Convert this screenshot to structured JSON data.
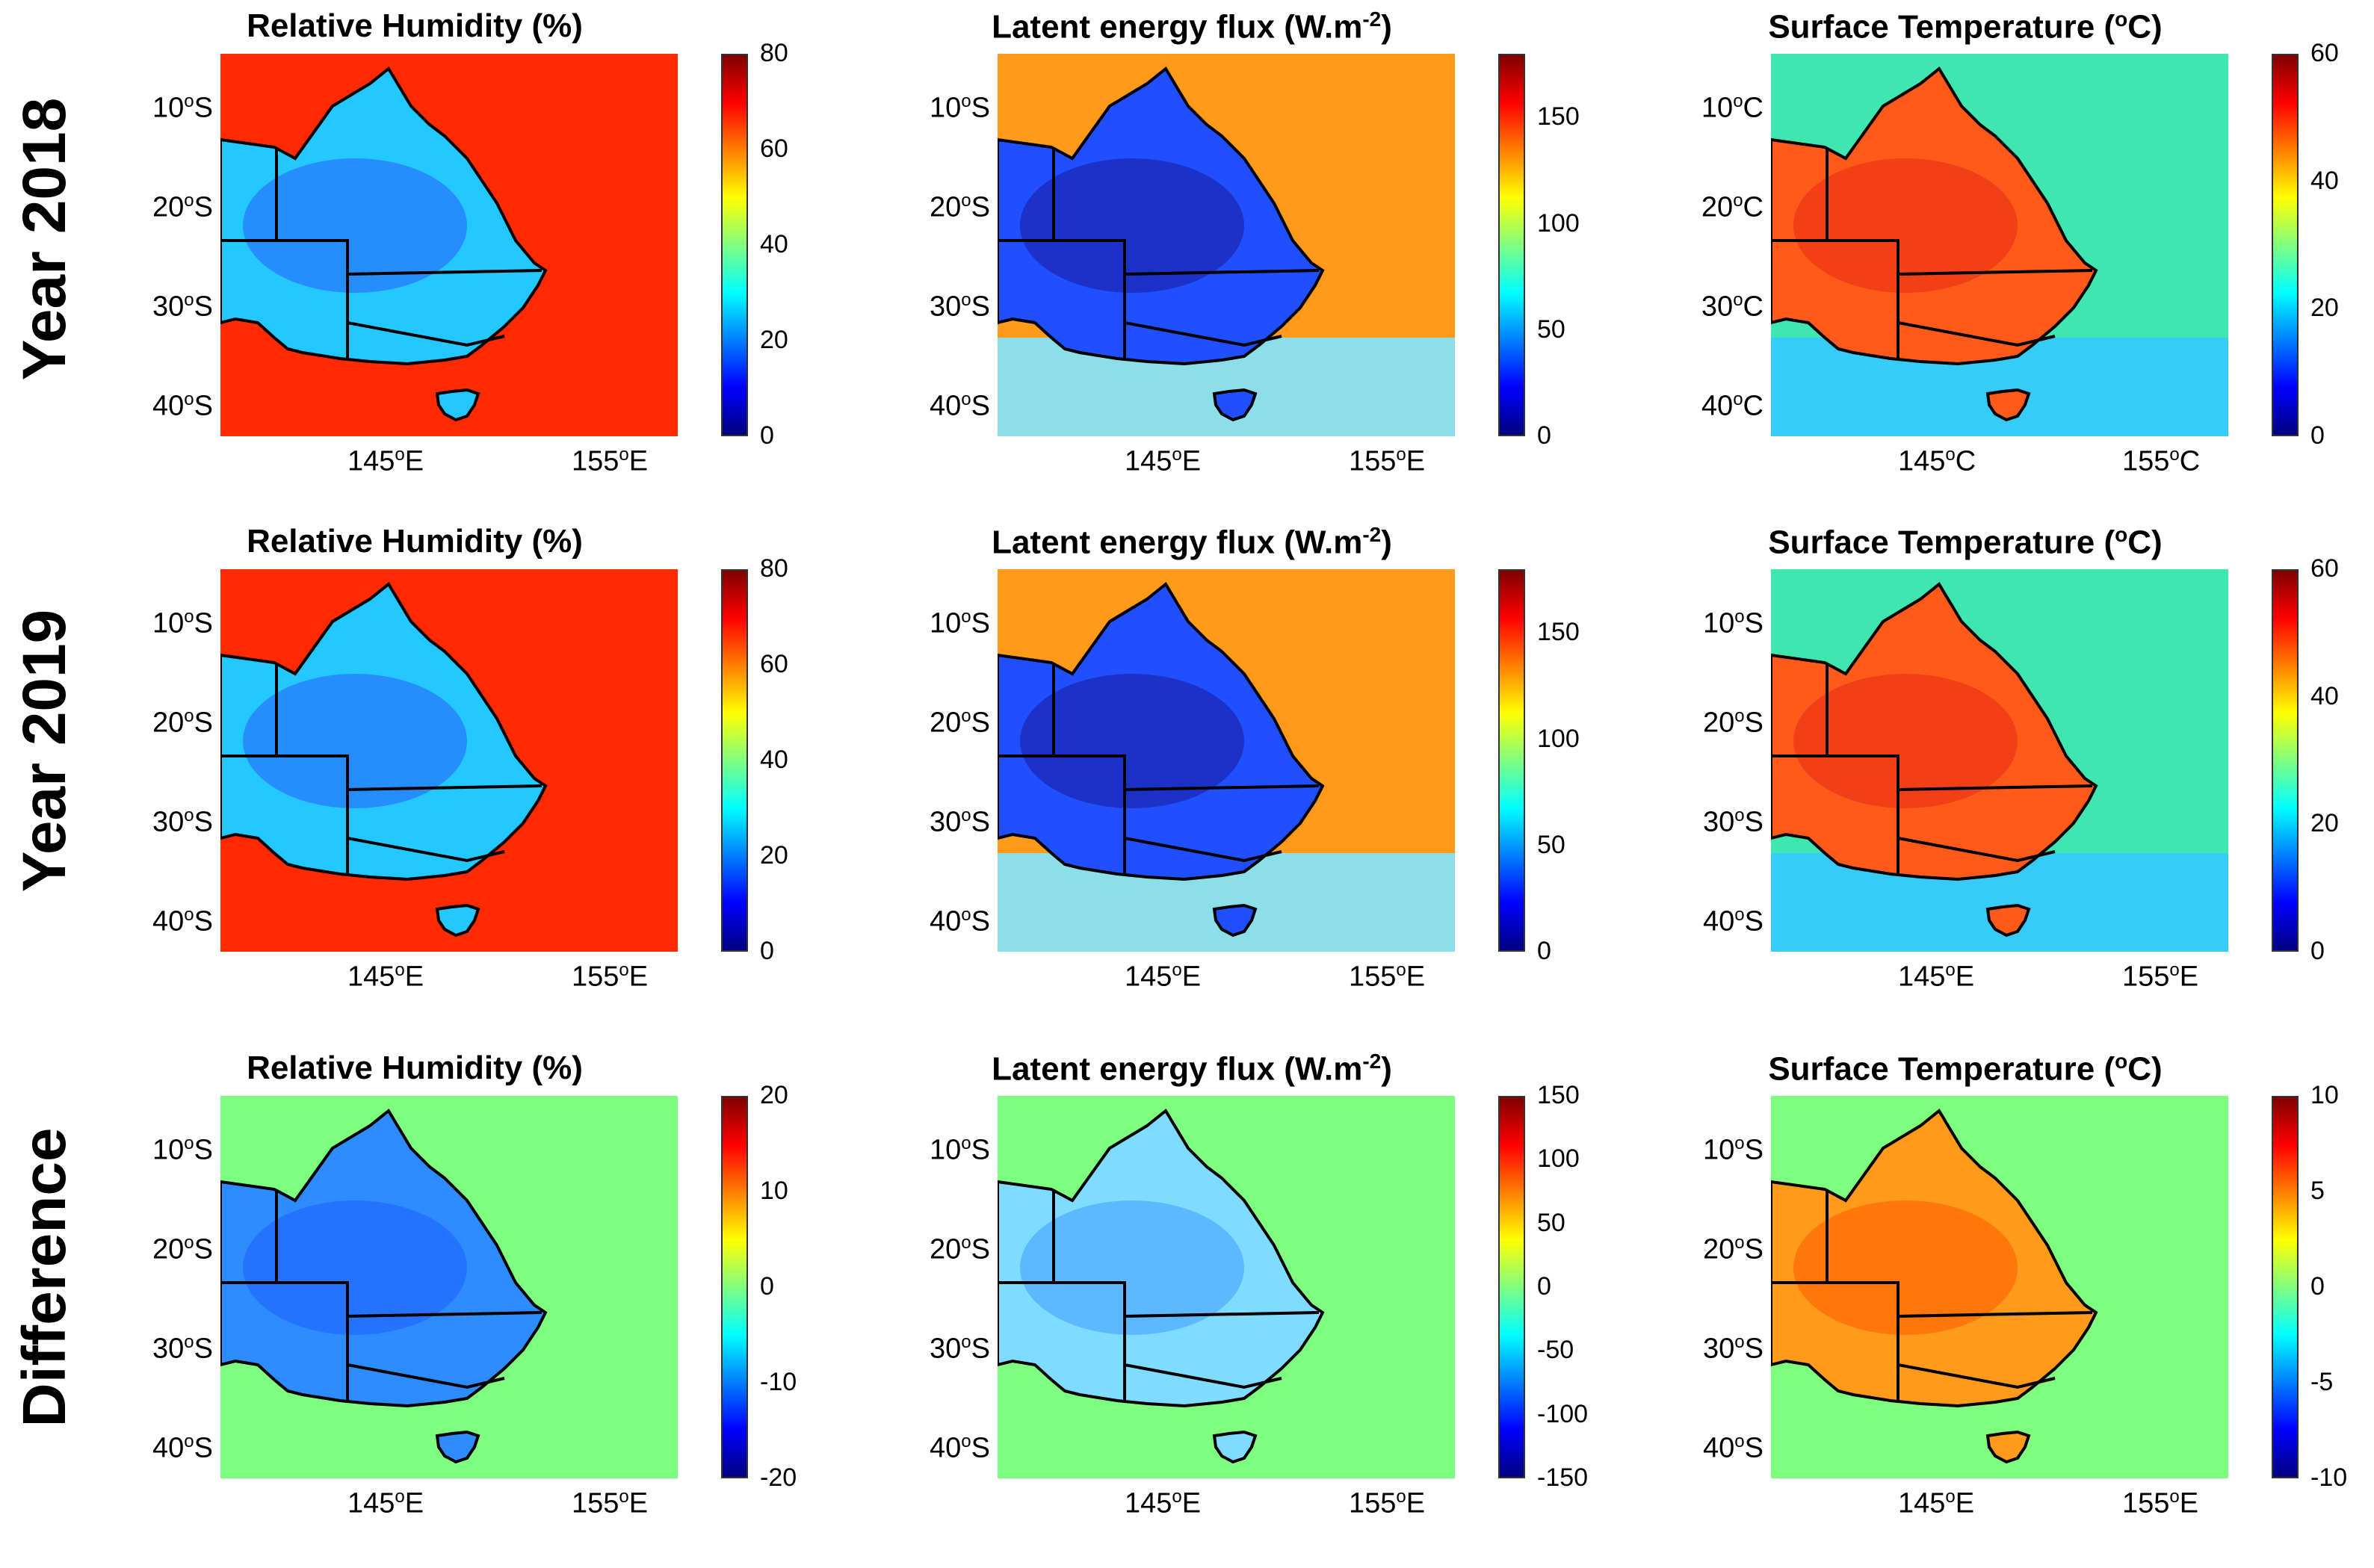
{
  "rows": [
    {
      "label": "Year 2018",
      "kind": "year2018"
    },
    {
      "label": "Year 2019",
      "kind": "year2019"
    },
    {
      "label": "Difference",
      "kind": "diff"
    }
  ],
  "titles": {
    "rh": "Relative Humidity (%)",
    "le_base": "Latent energy flux (W.m",
    "le_sup": "-2",
    "le_end": ")",
    "st_base": "Surface Temperature (",
    "st_sup": "o",
    "st_end": "C)"
  },
  "degree_symbol": "o",
  "lat_labels_S": [
    [
      "10",
      "S"
    ],
    [
      "20",
      "S"
    ],
    [
      "30",
      "S"
    ],
    [
      "40",
      "S"
    ]
  ],
  "lat_labels_C": [
    [
      "10",
      "C"
    ],
    [
      "20",
      "C"
    ],
    [
      "30",
      "C"
    ],
    [
      "40",
      "C"
    ]
  ],
  "lon_labels_E": [
    [
      "145",
      "E"
    ],
    [
      "155",
      "E"
    ]
  ],
  "lon_labels_C": [
    [
      "145",
      "C"
    ],
    [
      "155",
      "C"
    ]
  ],
  "colorbars": {
    "rh_year": [
      "80",
      "60",
      "40",
      "20",
      "0"
    ],
    "le_year": [
      "150",
      "100",
      "50",
      "0"
    ],
    "st_year": [
      "60",
      "40",
      "20",
      "0"
    ],
    "rh_diff": [
      "20",
      "10",
      "0",
      "-10",
      "-20"
    ],
    "le_diff": [
      "150",
      "100",
      "50",
      "0",
      "-50",
      "-100",
      "-150"
    ],
    "st_diff": [
      "10",
      "5",
      "0",
      "-5",
      "-10"
    ]
  },
  "colors": {
    "jet": [
      "#00007f",
      "#0000ff",
      "#007fff",
      "#00ffff",
      "#7fff7f",
      "#ffff00",
      "#ff7f00",
      "#ff0000",
      "#7f0000"
    ],
    "border": "#000000"
  }
}
